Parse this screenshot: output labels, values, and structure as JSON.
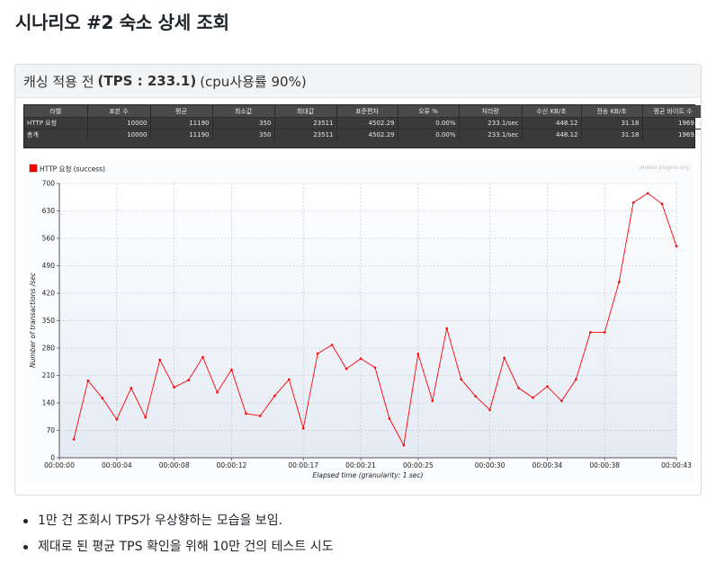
{
  "page": {
    "title": "시나리오 #2 숙소 상세 조회"
  },
  "card": {
    "title_prefix": "캐싱 적용 전",
    "title_bold": "(TPS : 233.1)",
    "title_suffix": "(cpu사용률 90%)"
  },
  "summary_table": {
    "headers": [
      "라벨",
      "표본 수",
      "평균",
      "최소값",
      "최대값",
      "표준편차",
      "오류 %",
      "처리량",
      "수신 KB/초",
      "전송 KB/초",
      "평균 바이트 수"
    ],
    "rows": [
      [
        "HTTP 요청",
        "10000",
        "11190",
        "350",
        "23511",
        "4502.29",
        "0.00%",
        "233.1/sec",
        "448.12",
        "31.18",
        "1969.0"
      ],
      [
        "총계",
        "10000",
        "11190",
        "350",
        "23511",
        "4502.29",
        "0.00%",
        "233.1/sec",
        "448.12",
        "31.18",
        "1969.0"
      ]
    ]
  },
  "chart_data": {
    "type": "line",
    "legend": "HTTP 요청 (success)",
    "watermark": "jmeter-plugins.org",
    "xlabel": "Elapsed time (granularity: 1 sec)",
    "ylabel": "Number of transactions /sec",
    "ylim": [
      0,
      700
    ],
    "yticks": [
      0,
      70,
      140,
      210,
      280,
      350,
      420,
      490,
      560,
      630,
      700
    ],
    "xlim": [
      0,
      43
    ],
    "xticks": [
      {
        "value": 0,
        "label": "00:00:00"
      },
      {
        "value": 4,
        "label": "00:00:04"
      },
      {
        "value": 8,
        "label": "00:00:08"
      },
      {
        "value": 12,
        "label": "00:00:12"
      },
      {
        "value": 17,
        "label": "00:00:17"
      },
      {
        "value": 21,
        "label": "00:00:21"
      },
      {
        "value": 25,
        "label": "00:00:25"
      },
      {
        "value": 30,
        "label": "00:00:30"
      },
      {
        "value": 34,
        "label": "00:00:34"
      },
      {
        "value": 38,
        "label": "00:00:38"
      },
      {
        "value": 43,
        "label": "00:00:43"
      }
    ],
    "grid": true,
    "legend_position": "top-left",
    "series": [
      {
        "name": "HTTP 요청 (success)",
        "color": "#ff0000",
        "x": [
          1,
          2,
          3,
          4,
          5,
          6,
          7,
          8,
          9,
          10,
          11,
          12,
          13,
          14,
          15,
          16,
          17,
          18,
          19,
          20,
          21,
          22,
          23,
          24,
          25,
          26,
          27,
          28,
          29,
          30,
          31,
          32,
          33,
          34,
          35,
          36,
          37,
          38,
          39,
          40,
          41,
          42,
          43
        ],
        "values": [
          47,
          197,
          152,
          98,
          178,
          103,
          250,
          180,
          198,
          257,
          167,
          225,
          113,
          107,
          158,
          200,
          75,
          266,
          288,
          227,
          253,
          230,
          100,
          32,
          265,
          145,
          330,
          200,
          157,
          122,
          255,
          178,
          153,
          182,
          145,
          200,
          320,
          320,
          448,
          651,
          675,
          648,
          540
        ]
      }
    ]
  },
  "notes": [
    "1만 건 조회시 TPS가 우상향하는 모습을 보임.",
    "제대로 된 평균 TPS 확인을 위해 10만 건의 테스트 시도"
  ],
  "colors": {
    "series": "#ff0000",
    "plot_bg_top": "#ffffff",
    "plot_bg_bottom": "#e4eaf4",
    "table_bg": "#3a3a3a"
  }
}
